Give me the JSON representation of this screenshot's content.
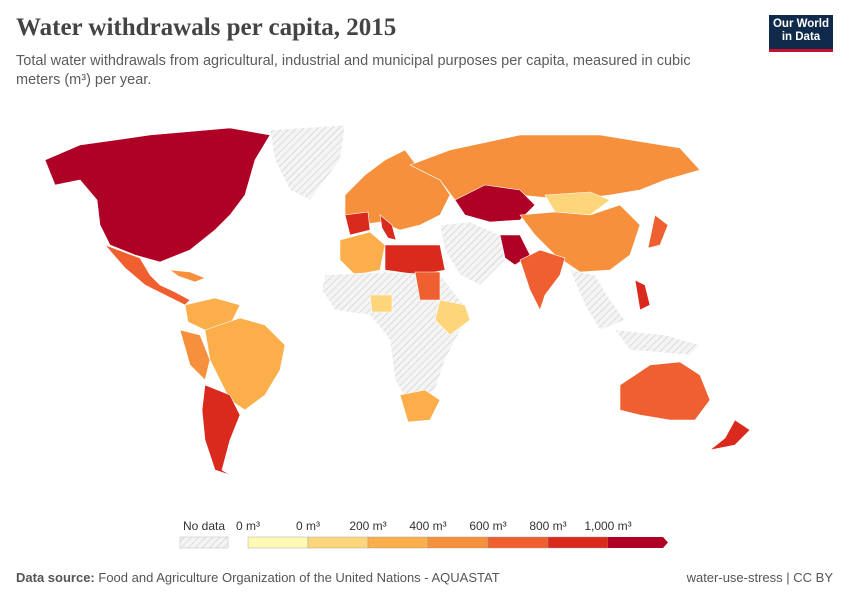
{
  "header": {
    "title": "Water withdrawals per capita, 2015",
    "subtitle": "Total water withdrawals from agricultural, industrial and municipal purposes per capita, measured in cubic meters (m³) per year."
  },
  "logo": {
    "line1": "Our World",
    "line2": "in Data"
  },
  "legend": {
    "no_data": "No data",
    "labels": [
      "0 m³",
      "0 m³",
      "200 m³",
      "400 m³",
      "600 m³",
      "800 m³",
      "1,000 m³"
    ],
    "colors": [
      "#fef9b4",
      "#fdd57a",
      "#fbae4a",
      "#f6903c",
      "#ef5f2f",
      "#d92a1d",
      "#ae0125"
    ]
  },
  "footer": {
    "source_label": "Data source:",
    "source": "Food and Agriculture Organization of the United Nations - AQUASTAT",
    "right": "water-use-stress | CC BY"
  }
}
